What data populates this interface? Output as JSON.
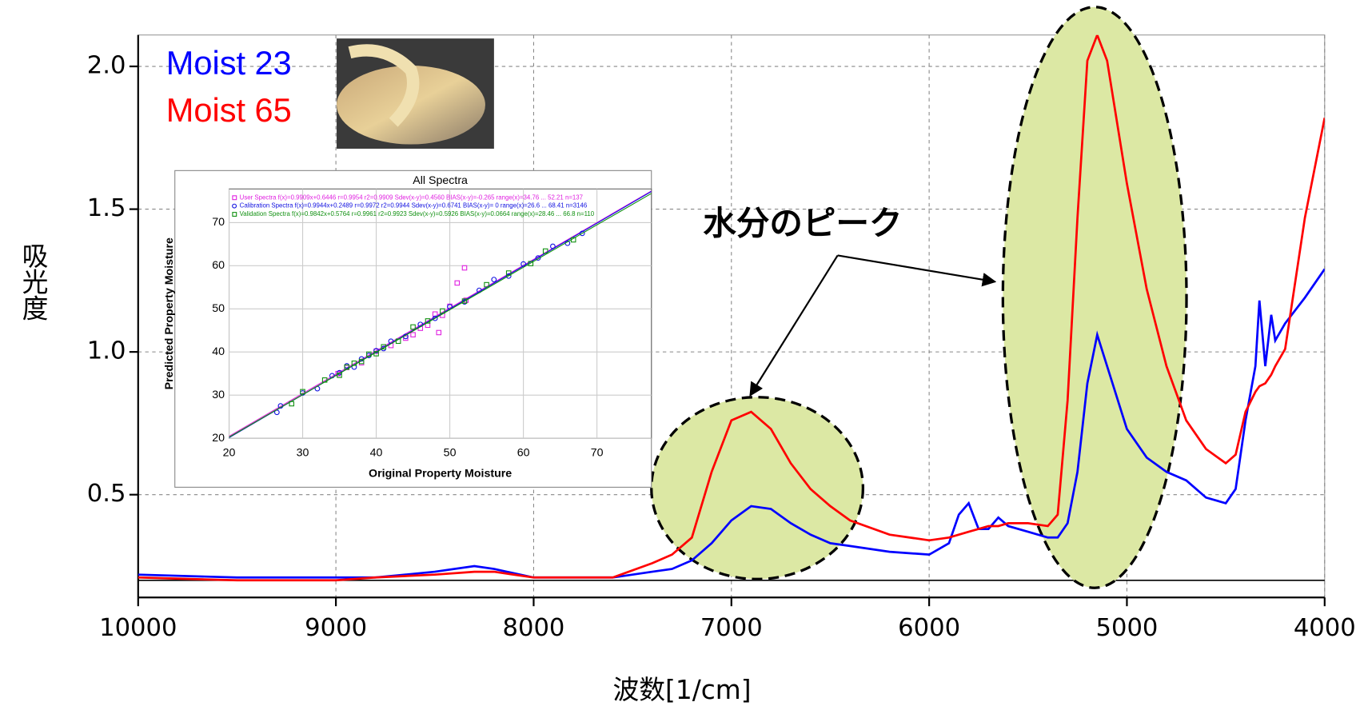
{
  "chart_data": [
    {
      "type": "line",
      "x_label": "波数[1/cm]",
      "y_label": "吸光度",
      "annotation": "水分のピーク",
      "x": [
        10000,
        9500,
        9000,
        8800,
        8500,
        8300,
        8200,
        8000,
        7800,
        7600,
        7400,
        7300,
        7200,
        7100,
        7000,
        6900,
        6800,
        6700,
        6600,
        6500,
        6400,
        6200,
        6000,
        5900,
        5850,
        5800,
        5750,
        5700,
        5650,
        5600,
        5500,
        5400,
        5350,
        5300,
        5250,
        5200,
        5150,
        5100,
        5000,
        4900,
        4800,
        4700,
        4600,
        4500,
        4450,
        4400,
        4350,
        4330,
        4300,
        4270,
        4250,
        4200,
        4100,
        4000
      ],
      "series": [
        {
          "name": "Moist 23",
          "color": "#0000ff",
          "values": [
            0.22,
            0.21,
            0.21,
            0.21,
            0.23,
            0.25,
            0.24,
            0.21,
            0.21,
            0.21,
            0.23,
            0.24,
            0.27,
            0.33,
            0.41,
            0.46,
            0.45,
            0.4,
            0.36,
            0.33,
            0.32,
            0.3,
            0.29,
            0.33,
            0.43,
            0.47,
            0.38,
            0.38,
            0.42,
            0.39,
            0.37,
            0.35,
            0.35,
            0.4,
            0.58,
            0.89,
            1.06,
            0.95,
            0.73,
            0.63,
            0.58,
            0.55,
            0.49,
            0.47,
            0.52,
            0.76,
            0.95,
            1.18,
            0.95,
            1.13,
            1.04,
            1.1,
            1.19,
            1.29
          ]
        },
        {
          "name": "Moist 65",
          "color": "#ff0000",
          "values": [
            0.21,
            0.2,
            0.2,
            0.21,
            0.22,
            0.23,
            0.23,
            0.21,
            0.21,
            0.21,
            0.26,
            0.29,
            0.35,
            0.58,
            0.76,
            0.79,
            0.73,
            0.61,
            0.52,
            0.46,
            0.41,
            0.36,
            0.34,
            0.35,
            0.36,
            0.37,
            0.38,
            0.39,
            0.39,
            0.4,
            0.4,
            0.39,
            0.43,
            0.83,
            1.47,
            2.02,
            2.11,
            2.02,
            1.59,
            1.22,
            0.95,
            0.76,
            0.66,
            0.61,
            0.64,
            0.79,
            0.86,
            0.88,
            0.89,
            0.92,
            0.95,
            1.01,
            1.47,
            1.82
          ]
        }
      ],
      "xlim": [
        10000,
        4000
      ],
      "ylim": [
        0.14,
        2.11
      ],
      "xticks": [
        10000,
        9000,
        8000,
        7000,
        6000,
        5000,
        4000
      ],
      "yticks": [
        0.5,
        {
          "value": 1,
          "label": "1.0"
        },
        1.5,
        {
          "value": 2,
          "label": "2.0"
        }
      ],
      "grid": true,
      "reference_line": 0.2
    },
    {
      "type": "scatter",
      "title": "All Spectra",
      "x_label": "Original Property Moisture",
      "y_label": "Predicted Property Moisture",
      "xlim": [
        20,
        77.4
      ],
      "ylim": [
        20,
        77.8
      ],
      "xticks": [
        20,
        30,
        40,
        50,
        60,
        70
      ],
      "yticks": [
        20,
        30,
        40,
        50,
        60,
        70
      ],
      "grid": true,
      "series": [
        {
          "name": "User Spectra f(x)=0.9909x+0.6446  r=0.9954  r2=0.9909  Sdev(x-y)=0.4560  BIAS(x-y)=-0.265  range(x)=34.76 ... 52.21  n=137",
          "color": "#e020e0",
          "marker": "square",
          "fit": {
            "slope": 0.9909,
            "intercept": 0.6446
          },
          "x": [
            34.8,
            36,
            38,
            40,
            42,
            44,
            45,
            46,
            47,
            48,
            48.5,
            49,
            50,
            51,
            52,
            52.2
          ],
          "values": [
            35.0,
            36.4,
            37.5,
            40.2,
            41.5,
            43.2,
            44.0,
            45.5,
            46.2,
            48.8,
            44.5,
            48.5,
            50.6,
            56.0,
            59.5,
            52.0
          ]
        },
        {
          "name": "Calibration Spectra f(x)=0.9944x+0.2489  r=0.9972  r2=0.9944  Sdev(x-y)=0.6741  BIAS(x-y)= 0  range(x)=26.6 ... 68.41  n=3146",
          "color": "#1010e0",
          "marker": "circle",
          "fit": {
            "slope": 0.9944,
            "intercept": 0.2489
          },
          "x": [
            26.5,
            27,
            30,
            32,
            34,
            35,
            36,
            37,
            38,
            39,
            40,
            41,
            42,
            44,
            46,
            48,
            50,
            52,
            54,
            56,
            58,
            60,
            62,
            64,
            66,
            68
          ],
          "values": [
            26.0,
            27.5,
            30.5,
            31.5,
            34.5,
            35.2,
            36.8,
            36.5,
            38.4,
            39.2,
            40.3,
            40.8,
            42.5,
            43.6,
            46.4,
            47.8,
            50.5,
            51.6,
            54.3,
            56.8,
            57.6,
            60.4,
            61.8,
            64.5,
            65.2,
            67.5
          ]
        },
        {
          "name": "Validation Spectra f(x)=0.9842x+0.5764  r=0.9961  r2=0.9923  Sdev(x-y)=0.5926  BIAS(x-y)=0.0664  range(x)=28.46 ... 66.8  n=110",
          "color": "#109010",
          "marker": "square",
          "fit": {
            "slope": 0.9842,
            "intercept": 0.5764
          },
          "x": [
            28.5,
            30,
            33,
            35,
            36,
            37,
            38,
            39,
            40,
            41,
            43,
            45,
            47,
            49,
            52,
            55,
            58,
            61,
            63,
            66.8
          ],
          "values": [
            28.0,
            30.8,
            33.5,
            34.6,
            36.5,
            37.4,
            37.8,
            39.5,
            39.6,
            41.2,
            42.5,
            45.8,
            47.2,
            49.5,
            51.8,
            55.6,
            58.3,
            60.5,
            63.4,
            66.0
          ]
        }
      ]
    }
  ]
}
